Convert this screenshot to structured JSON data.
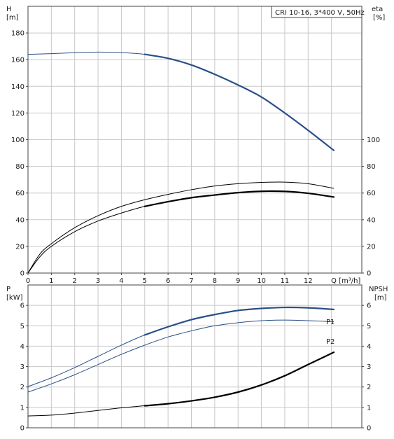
{
  "colors": {
    "blue": "#2a4f87",
    "black": "#000000",
    "grid": "#c8c8c8"
  },
  "chart_data": [
    {
      "type": "line",
      "info_label": "CRI 10-16, 3*400 V, 50Hz",
      "x_axis": {
        "label": "Q [m³/h]",
        "ticks": [
          0,
          1,
          2,
          3,
          4,
          5,
          6,
          7,
          8,
          9,
          10,
          11,
          12
        ],
        "range": [
          0,
          14.3
        ]
      },
      "y_left": {
        "label_top": "H",
        "label_bottom": "[m]",
        "ticks": [
          0,
          20,
          40,
          60,
          80,
          100,
          120,
          140,
          160,
          180
        ],
        "range": [
          0,
          200
        ]
      },
      "y_right": {
        "label_top": "eta",
        "label_bottom": "[%]",
        "ticks": [
          0,
          20,
          40,
          60,
          80,
          100
        ],
        "range": [
          0,
          200
        ]
      },
      "series": [
        {
          "axis": "left",
          "color": "blue",
          "highlight_from": 5,
          "points": [
            [
              0,
              164
            ],
            [
              1,
              164.5
            ],
            [
              2,
              165.2
            ],
            [
              3,
              165.7
            ],
            [
              4,
              165.3
            ],
            [
              5,
              164
            ],
            [
              6,
              161
            ],
            [
              7,
              156
            ],
            [
              8,
              149
            ],
            [
              9,
              141
            ],
            [
              10,
              132
            ],
            [
              11,
              120
            ],
            [
              12,
              107
            ],
            [
              13.1,
              92
            ]
          ]
        },
        {
          "axis": "right",
          "color": "black",
          "highlight_from": 5,
          "points": [
            [
              0,
              0
            ],
            [
              0.5,
              12
            ],
            [
              1,
              20
            ],
            [
              2,
              31
            ],
            [
              3,
              39
            ],
            [
              4,
              45
            ],
            [
              5,
              50
            ],
            [
              6,
              53.5
            ],
            [
              7,
              56.5
            ],
            [
              8,
              58.5
            ],
            [
              9,
              60.3
            ],
            [
              10,
              61.3
            ],
            [
              11,
              61.2
            ],
            [
              12,
              59.8
            ],
            [
              13.1,
              57
            ]
          ]
        },
        {
          "axis": "right",
          "color": "black",
          "highlight_from": null,
          "points": [
            [
              0,
              0
            ],
            [
              0.5,
              14
            ],
            [
              1,
              22
            ],
            [
              2,
              34
            ],
            [
              3,
              43
            ],
            [
              4,
              50
            ],
            [
              5,
              55
            ],
            [
              6,
              59
            ],
            [
              7,
              62.5
            ],
            [
              8,
              65.3
            ],
            [
              9,
              67
            ],
            [
              10,
              68
            ],
            [
              11,
              68.2
            ],
            [
              12,
              67
            ],
            [
              13.1,
              63.5
            ]
          ]
        }
      ]
    },
    {
      "type": "line",
      "x_axis": {
        "range": [
          0,
          14.3
        ]
      },
      "y_left": {
        "label_top": "P",
        "label_bottom": "[kW]",
        "ticks": [
          0,
          1,
          2,
          3,
          4,
          5,
          6
        ],
        "range": [
          0,
          7
        ]
      },
      "y_right": {
        "label_top": "NPSH",
        "label_bottom": "[m]",
        "ticks": [
          0,
          1,
          2,
          3,
          4,
          5,
          6
        ],
        "range": [
          0,
          7
        ]
      },
      "series": [
        {
          "name": "P1",
          "axis": "left",
          "color": "blue",
          "highlight_from": 5,
          "points": [
            [
              0,
              2.02
            ],
            [
              1,
              2.45
            ],
            [
              2,
              2.95
            ],
            [
              3,
              3.5
            ],
            [
              4,
              4.05
            ],
            [
              5,
              4.55
            ],
            [
              6,
              4.95
            ],
            [
              7,
              5.3
            ],
            [
              8,
              5.55
            ],
            [
              9,
              5.75
            ],
            [
              10,
              5.85
            ],
            [
              11,
              5.9
            ],
            [
              12,
              5.88
            ],
            [
              13.1,
              5.8
            ]
          ]
        },
        {
          "name": "P2",
          "axis": "left",
          "color": "blue",
          "highlight_from": null,
          "points": [
            [
              0,
              1.75
            ],
            [
              1,
              2.15
            ],
            [
              2,
              2.6
            ],
            [
              3,
              3.1
            ],
            [
              4,
              3.6
            ],
            [
              5,
              4.05
            ],
            [
              6,
              4.45
            ],
            [
              7,
              4.75
            ],
            [
              8,
              5
            ],
            [
              9,
              5.15
            ],
            [
              10,
              5.25
            ],
            [
              11,
              5.28
            ],
            [
              12,
              5.25
            ],
            [
              13.1,
              5.2
            ]
          ]
        },
        {
          "axis": "right",
          "color": "black",
          "highlight_from": 5,
          "points": [
            [
              0,
              0.58
            ],
            [
              1,
              0.62
            ],
            [
              2,
              0.72
            ],
            [
              3,
              0.85
            ],
            [
              4,
              0.98
            ],
            [
              5,
              1.08
            ],
            [
              6,
              1.18
            ],
            [
              7,
              1.32
            ],
            [
              8,
              1.5
            ],
            [
              9,
              1.75
            ],
            [
              10,
              2.1
            ],
            [
              11,
              2.55
            ],
            [
              12,
              3.1
            ],
            [
              13.1,
              3.7
            ]
          ]
        }
      ]
    }
  ]
}
